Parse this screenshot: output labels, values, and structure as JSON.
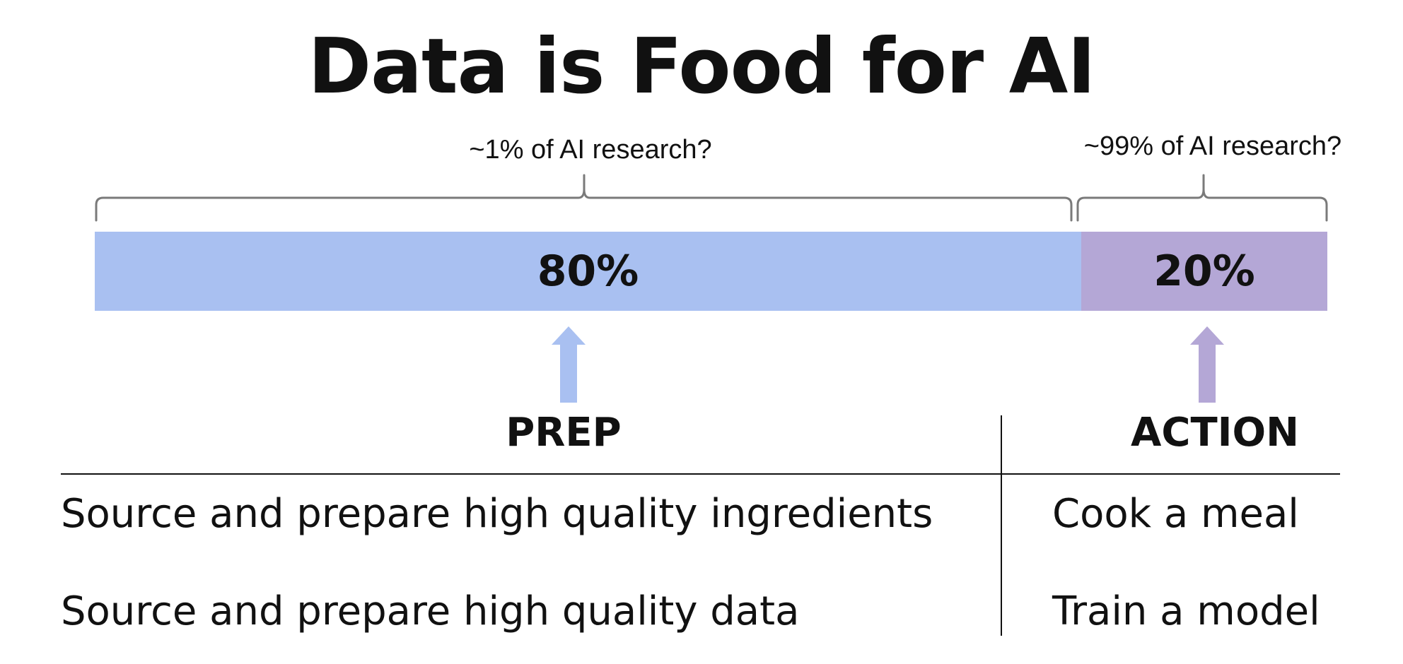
{
  "title": "Data is Food for AI",
  "annotations": {
    "left": "~1% of AI research?",
    "right": "~99% of AI research?"
  },
  "split": {
    "prep": {
      "value_label": "80%",
      "fraction": 0.8,
      "color": "#a9c0f1"
    },
    "action": {
      "value_label": "20%",
      "fraction": 0.2,
      "color": "#b4a7d6"
    }
  },
  "columns": {
    "prep_header": "PREP",
    "action_header": "ACTION"
  },
  "rows": [
    {
      "prep": "Source and prepare high quality ingredients",
      "action": "Cook a meal"
    },
    {
      "prep": "Source and prepare high quality data",
      "action": "Train a model"
    }
  ],
  "colors": {
    "brace": "#7a7a7a",
    "prep_arrow": "#a9c0f1",
    "action_arrow": "#b4a7d6"
  }
}
